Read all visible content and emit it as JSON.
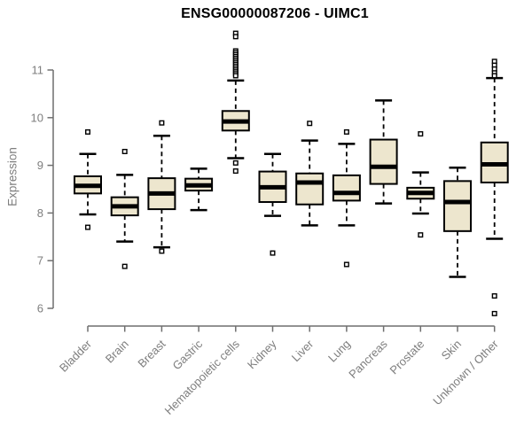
{
  "chart_data": {
    "type": "boxplot",
    "title": "ENSG00000087206 - UIMC1",
    "ylabel": "Expression",
    "xlabel": "",
    "ylim": [
      5.8,
      11.9
    ],
    "y_ticks": [
      6,
      7,
      8,
      9,
      10,
      11
    ],
    "grid": false,
    "legend": "none",
    "x_tick_rotation": 45,
    "box_fill_color": "#EDE6CE",
    "box_line_color": "#000000",
    "axis_line_color": "#6f6f6f",
    "axis_text_color": "#7e7e7e",
    "title_color": "#000000",
    "categories": [
      "Bladder",
      "Brain",
      "Breast",
      "Gastric",
      "Hematopoietic cells",
      "Kidney",
      "Liver",
      "Lung",
      "Pancreas",
      "Prostate",
      "Skin",
      "Unknown / Other"
    ],
    "series": [
      {
        "name": "Bladder",
        "whisker_low": 7.97,
        "q1": 8.41,
        "median": 8.57,
        "q3": 8.77,
        "whisker_high": 9.24,
        "outliers": [
          9.7,
          7.7
        ]
      },
      {
        "name": "Brain",
        "whisker_low": 7.4,
        "q1": 7.95,
        "median": 8.14,
        "q3": 8.33,
        "whisker_high": 8.8,
        "outliers": [
          9.29,
          6.88
        ]
      },
      {
        "name": "Breast",
        "whisker_low": 7.28,
        "q1": 8.08,
        "median": 8.41,
        "q3": 8.73,
        "whisker_high": 9.62,
        "outliers": [
          9.89,
          7.2
        ]
      },
      {
        "name": "Gastric",
        "whisker_low": 8.06,
        "q1": 8.47,
        "median": 8.58,
        "q3": 8.72,
        "whisker_high": 8.93,
        "outliers": []
      },
      {
        "name": "Hematopoietic cells",
        "whisker_low": 9.15,
        "q1": 9.73,
        "median": 9.92,
        "q3": 10.14,
        "whisker_high": 10.78,
        "outliers": [
          11.77,
          11.7,
          11.4,
          11.36,
          11.32,
          11.28,
          11.24,
          11.2,
          11.16,
          11.12,
          11.08,
          11.04,
          11.0,
          10.96,
          10.92,
          10.88,
          9.05,
          8.88
        ]
      },
      {
        "name": "Kidney",
        "whisker_low": 7.94,
        "q1": 8.23,
        "median": 8.54,
        "q3": 8.87,
        "whisker_high": 9.24,
        "outliers": [
          7.16
        ]
      },
      {
        "name": "Liver",
        "whisker_low": 7.74,
        "q1": 8.18,
        "median": 8.64,
        "q3": 8.83,
        "whisker_high": 9.52,
        "outliers": [
          9.88
        ]
      },
      {
        "name": "Lung",
        "whisker_low": 7.74,
        "q1": 8.26,
        "median": 8.42,
        "q3": 8.79,
        "whisker_high": 9.45,
        "outliers": [
          9.7,
          6.92
        ]
      },
      {
        "name": "Pancreas",
        "whisker_low": 8.2,
        "q1": 8.61,
        "median": 8.97,
        "q3": 9.54,
        "whisker_high": 10.36,
        "outliers": []
      },
      {
        "name": "Prostate",
        "whisker_low": 7.99,
        "q1": 8.3,
        "median": 8.42,
        "q3": 8.53,
        "whisker_high": 8.85,
        "outliers": [
          9.66,
          7.54
        ]
      },
      {
        "name": "Skin",
        "whisker_low": 6.66,
        "q1": 7.62,
        "median": 8.23,
        "q3": 8.67,
        "whisker_high": 8.95,
        "outliers": []
      },
      {
        "name": "Unknown / Other",
        "whisker_low": 7.46,
        "q1": 8.64,
        "median": 9.02,
        "q3": 9.48,
        "whisker_high": 10.83,
        "outliers": [
          11.18,
          11.1,
          11.02,
          10.94,
          10.88,
          6.26,
          5.89
        ]
      }
    ]
  }
}
